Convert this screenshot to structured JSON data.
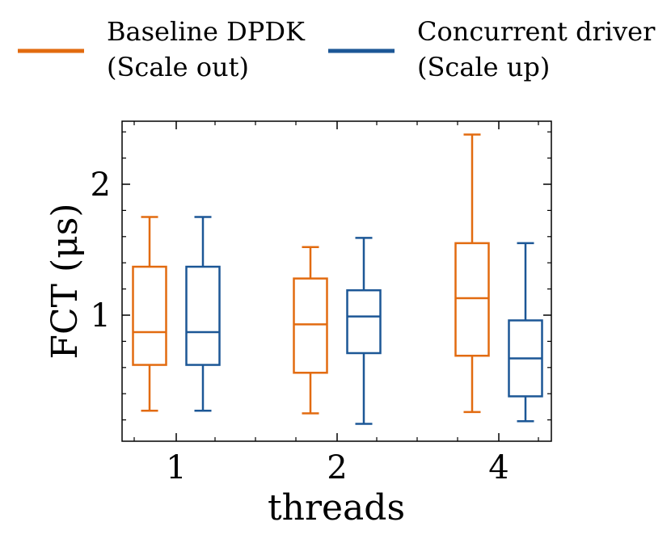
{
  "chart_data": {
    "type": "box",
    "xlabel": "threads",
    "ylabel": "FCT (μs)",
    "categories": [
      "1",
      "2",
      "4"
    ],
    "ylim": [
      0.1,
      2.45
    ],
    "yticks": [
      1,
      2
    ],
    "grid": false,
    "legend": {
      "placement": "top",
      "entries": [
        {
          "line1": "Baseline DPDK",
          "line2": "(Scale out)",
          "color": "#e26b10"
        },
        {
          "line1": "Concurrent driver",
          "line2": "(Scale up)",
          "color": "#1c5796"
        }
      ]
    },
    "series": [
      {
        "name": "Baseline DPDK (Scale out)",
        "color": "#e26b10",
        "boxes": [
          {
            "category": "1",
            "whisker_low": 0.27,
            "q1": 0.62,
            "median": 0.87,
            "q3": 1.37,
            "whisker_high": 1.75
          },
          {
            "category": "2",
            "whisker_low": 0.25,
            "q1": 0.56,
            "median": 0.93,
            "q3": 1.28,
            "whisker_high": 1.52
          },
          {
            "category": "4",
            "whisker_low": 0.26,
            "q1": 0.69,
            "median": 1.13,
            "q3": 1.55,
            "whisker_high": 2.38
          }
        ]
      },
      {
        "name": "Concurrent driver (Scale up)",
        "color": "#1c5796",
        "boxes": [
          {
            "category": "1",
            "whisker_low": 0.27,
            "q1": 0.62,
            "median": 0.87,
            "q3": 1.37,
            "whisker_high": 1.75
          },
          {
            "category": "2",
            "whisker_low": 0.17,
            "q1": 0.71,
            "median": 0.99,
            "q3": 1.19,
            "whisker_high": 1.59
          },
          {
            "category": "4",
            "whisker_low": 0.19,
            "q1": 0.38,
            "median": 0.67,
            "q3": 0.96,
            "whisker_high": 1.55
          }
        ]
      }
    ]
  }
}
